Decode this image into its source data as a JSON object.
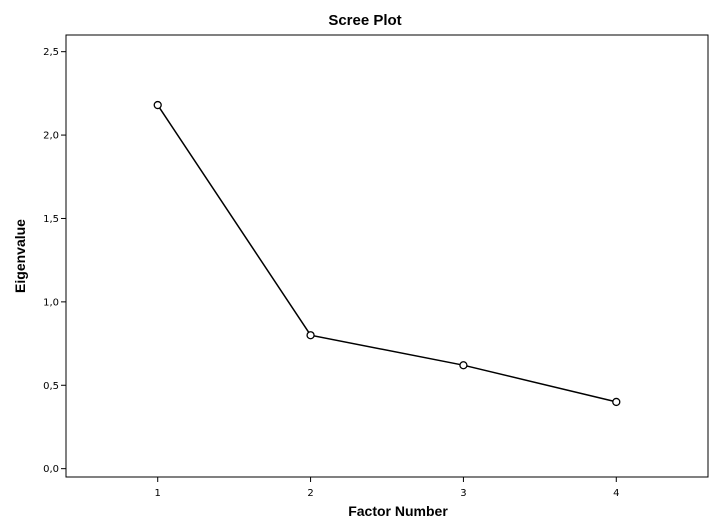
{
  "chart_data": {
    "type": "line",
    "title": "Scree Plot",
    "xlabel": "Factor Number",
    "ylabel": "Eigenvalue",
    "x": [
      1,
      2,
      3,
      4
    ],
    "series": [
      {
        "values": [
          2.18,
          0.8,
          0.62,
          0.4
        ]
      }
    ],
    "xlim": [
      0.4,
      4.6
    ],
    "ylim": [
      -0.05,
      2.6
    ],
    "xticks": [
      1,
      2,
      3,
      4
    ],
    "xtick_labels": [
      "1",
      "2",
      "3",
      "4"
    ],
    "yticks": [
      0,
      0.5,
      1.0,
      1.5,
      2.0,
      2.5
    ],
    "ytick_labels": [
      "0,0",
      "0,5",
      "1,0",
      "1,5",
      "2,0",
      "2,5"
    ],
    "grid": false,
    "markers": "open-circle",
    "colors": {
      "line": "#000000",
      "frame": "#000000",
      "background": "#ffffff"
    }
  }
}
